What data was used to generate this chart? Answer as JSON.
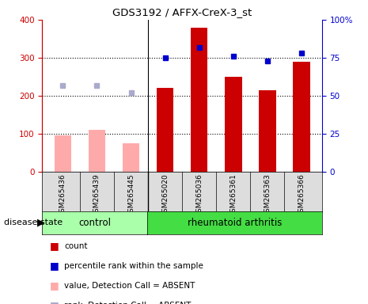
{
  "title": "GDS3192 / AFFX-CreX-3_st",
  "samples": [
    "GSM265436",
    "GSM265439",
    "GSM265445",
    "GSM265020",
    "GSM265036",
    "GSM265361",
    "GSM265363",
    "GSM265366"
  ],
  "groups": [
    "control",
    "control",
    "control",
    "rheumatoid arthritis",
    "rheumatoid arthritis",
    "rheumatoid arthritis",
    "rheumatoid arthritis",
    "rheumatoid arthritis"
  ],
  "count_values": [
    null,
    null,
    null,
    220,
    380,
    250,
    215,
    290
  ],
  "count_absent": [
    95,
    110,
    75,
    null,
    null,
    null,
    null,
    null
  ],
  "percentile_values": [
    null,
    null,
    null,
    75,
    82,
    76,
    73,
    78
  ],
  "percentile_absent": [
    57,
    57,
    52,
    null,
    null,
    null,
    null,
    null
  ],
  "ylim_left": [
    0,
    400
  ],
  "ylim_right": [
    0,
    100
  ],
  "yticks_left": [
    0,
    100,
    200,
    300,
    400
  ],
  "yticks_right": [
    0,
    25,
    50,
    75,
    100
  ],
  "bar_color_present": "#cc0000",
  "bar_color_absent": "#ffaaaa",
  "dot_color_present": "#0000cc",
  "dot_color_absent": "#aaaacc",
  "group_control_color": "#aaffaa",
  "group_ra_color": "#44dd44",
  "group_label_control": "control",
  "group_label_ra": "rheumatoid arthritis",
  "disease_state_label": "disease state",
  "legend_items": [
    {
      "label": "count",
      "color": "#cc0000"
    },
    {
      "label": "percentile rank within the sample",
      "color": "#0000cc"
    },
    {
      "label": "value, Detection Call = ABSENT",
      "color": "#ffaaaa"
    },
    {
      "label": "rank, Detection Call = ABSENT",
      "color": "#aaaacc"
    }
  ],
  "bar_width": 0.5,
  "n_control": 3,
  "n_ra": 5
}
